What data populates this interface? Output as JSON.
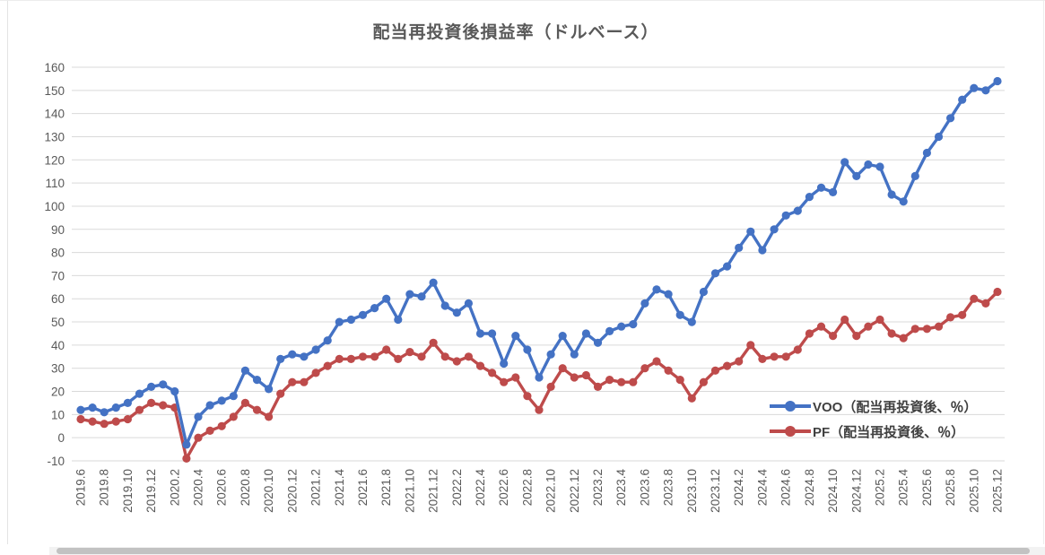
{
  "page": {
    "title": "配当再投資後損益率（ドルベース）"
  },
  "chart_data": {
    "type": "line",
    "title": "配当再投資後損益率（ドルベース）",
    "xlabel": "",
    "ylabel": "",
    "ylim": [
      -10,
      160
    ],
    "y_ticks": [
      160,
      150,
      140,
      130,
      120,
      110,
      100,
      90,
      80,
      70,
      60,
      50,
      40,
      30,
      20,
      10,
      0,
      -10
    ],
    "grid": "horizontal",
    "legend_position": "middle-right",
    "x": [
      "2019.6",
      "2019.7",
      "2019.8",
      "2019.9",
      "2019.10",
      "2019.11",
      "2019.12",
      "2020.1",
      "2020.2",
      "2020.3",
      "2020.4",
      "2020.5",
      "2020.6",
      "2020.7",
      "2020.8",
      "2020.9",
      "2020.10",
      "2020.11",
      "2020.12",
      "2021.1",
      "2021.2",
      "2021.3",
      "2021.4",
      "2021.5",
      "2021.6",
      "2021.7",
      "2021.8",
      "2021.9",
      "2021.10",
      "2021.11",
      "2021.12",
      "2022.1",
      "2022.2",
      "2022.3",
      "2022.4",
      "2022.5",
      "2022.6",
      "2022.7",
      "2022.8",
      "2022.9",
      "2022.10",
      "2022.11",
      "2022.12",
      "2023.1",
      "2023.2",
      "2023.3",
      "2023.4",
      "2023.5",
      "2023.6",
      "2023.7",
      "2023.8",
      "2023.9",
      "2023.10",
      "2023.11",
      "2023.12",
      "2024.1",
      "2024.2",
      "2024.3",
      "2024.4",
      "2024.5",
      "2024.6",
      "2024.7",
      "2024.8",
      "2024.9",
      "2024.10",
      "2024.11",
      "2024.12",
      "2025.1",
      "2025.2",
      "2025.3",
      "2025.4",
      "2025.5",
      "2025.6",
      "2025.7",
      "2025.8",
      "2025.9",
      "2025.10",
      "2025.11",
      "2025.12"
    ],
    "x_tick_labels": [
      "2019.6",
      "2019.8",
      "2019.10",
      "2019.12",
      "2020.2",
      "2020.4",
      "2020.6",
      "2020.8",
      "2020.10",
      "2020.12",
      "2021.2",
      "2021.4",
      "2021.6",
      "2021.8",
      "2021.10",
      "2021.12",
      "2022.2",
      "2022.4",
      "2022.6",
      "2022.8",
      "2022.10",
      "2022.12",
      "2023.2",
      "2023.4",
      "2023.6",
      "2023.8",
      "2023.10",
      "2023.12",
      "2024.2",
      "2024.4",
      "2024.6",
      "2024.8",
      "2024.10",
      "2024.12",
      "2025.2",
      "2025.4",
      "2025.6",
      "2025.8",
      "2025.10",
      "2025.12"
    ],
    "series": [
      {
        "name": "VOO（配当再投資後、％）",
        "color": "#4472C4",
        "values": [
          12,
          13,
          11,
          13,
          15,
          19,
          22,
          23,
          20,
          -3,
          9,
          14,
          16,
          18,
          29,
          25,
          21,
          34,
          36,
          35,
          38,
          42,
          50,
          51,
          53,
          56,
          60,
          51,
          62,
          61,
          67,
          57,
          54,
          58,
          45,
          45,
          32,
          44,
          38,
          26,
          36,
          44,
          36,
          45,
          41,
          46,
          48,
          49,
          58,
          64,
          62,
          53,
          50,
          63,
          71,
          74,
          82,
          89,
          81,
          90,
          96,
          98,
          104,
          108,
          106,
          119,
          113,
          118,
          117,
          105,
          102,
          113,
          123,
          130,
          138,
          146,
          151,
          150,
          154
        ]
      },
      {
        "name": "PF（配当再投資後、％）",
        "color": "#BE4B4B",
        "values": [
          8,
          7,
          6,
          7,
          8,
          12,
          15,
          14,
          13,
          -9,
          0,
          3,
          5,
          9,
          15,
          12,
          9,
          19,
          24,
          24,
          28,
          31,
          34,
          34,
          35,
          35,
          38,
          34,
          37,
          35,
          41,
          35,
          33,
          35,
          31,
          28,
          24,
          26,
          18,
          12,
          22,
          30,
          26,
          27,
          22,
          25,
          24,
          24,
          30,
          33,
          29,
          25,
          17,
          24,
          29,
          31,
          33,
          40,
          34,
          35,
          35,
          38,
          45,
          48,
          44,
          51,
          44,
          48,
          51,
          45,
          43,
          47,
          47,
          48,
          52,
          53,
          60,
          58,
          63
        ]
      }
    ],
    "style": {
      "grid_color": "#d9d9d9",
      "axis_text_color": "#595959",
      "title_color": "#595959",
      "background": "#ffffff"
    }
  }
}
